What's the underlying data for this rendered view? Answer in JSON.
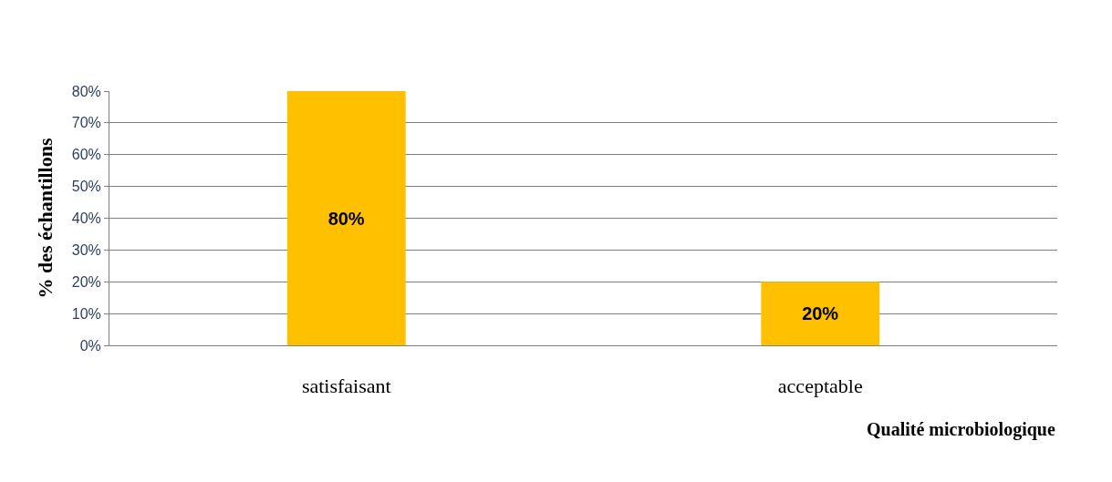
{
  "chart_data": {
    "type": "bar",
    "ylabel": "% des échantillons",
    "xlabel": "Qualité microbiologique",
    "categories": [
      "satisfaisant",
      "acceptable"
    ],
    "values": [
      80,
      20
    ],
    "value_labels": [
      "80%",
      "20%"
    ],
    "color": "#ffc000",
    "ylim": [
      0,
      80
    ],
    "yticks": [
      {
        "value": 0,
        "label": "0%"
      },
      {
        "value": 10,
        "label": "10%"
      },
      {
        "value": 20,
        "label": "20%"
      },
      {
        "value": 30,
        "label": "30%"
      },
      {
        "value": 40,
        "label": "40%"
      },
      {
        "value": 50,
        "label": "50%"
      },
      {
        "value": 60,
        "label": "60%"
      },
      {
        "value": 70,
        "label": "70%"
      },
      {
        "value": 80,
        "label": "80%"
      }
    ],
    "grid": "y"
  }
}
